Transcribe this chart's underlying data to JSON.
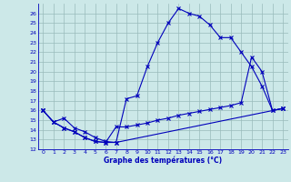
{
  "xlabel": "Graphe des températures (°C)",
  "xlim": [
    -0.5,
    23.5
  ],
  "ylim": [
    12,
    27
  ],
  "xticks": [
    0,
    1,
    2,
    3,
    4,
    5,
    6,
    7,
    8,
    9,
    10,
    11,
    12,
    13,
    14,
    15,
    16,
    17,
    18,
    19,
    20,
    21,
    22,
    23
  ],
  "yticks": [
    12,
    13,
    14,
    15,
    16,
    17,
    18,
    19,
    20,
    21,
    22,
    23,
    24,
    25,
    26
  ],
  "bg_color": "#cce8e8",
  "grid_color": "#99bbbb",
  "line_color": "#0000bb",
  "line1_x": [
    0,
    1,
    2,
    3,
    4,
    5,
    6,
    7,
    8,
    9,
    10,
    11,
    12,
    13,
    14,
    15,
    16,
    17,
    18,
    19,
    20,
    21,
    22,
    23
  ],
  "line1_y": [
    16,
    14.8,
    14.2,
    13.8,
    13.2,
    12.8,
    12.7,
    12.7,
    17.2,
    17.5,
    20.5,
    23.0,
    25.0,
    26.5,
    26.0,
    25.7,
    24.8,
    23.5,
    23.5,
    22.0,
    20.5,
    18.5,
    16.0,
    16.2
  ],
  "line2_x": [
    0,
    1,
    2,
    3,
    4,
    5,
    6,
    7,
    8,
    9,
    10,
    11,
    12,
    13,
    14,
    15,
    16,
    17,
    18,
    19,
    20,
    21,
    22,
    23
  ],
  "line2_y": [
    16,
    14.8,
    14.2,
    13.8,
    13.2,
    12.8,
    12.7,
    14.3,
    14.3,
    14.5,
    14.7,
    15.0,
    15.2,
    15.5,
    15.7,
    15.9,
    16.1,
    16.3,
    16.5,
    16.8,
    21.5,
    20.0,
    16.0,
    16.2
  ],
  "line3_x": [
    0,
    1,
    2,
    3,
    4,
    5,
    6,
    7,
    23
  ],
  "line3_y": [
    16,
    14.8,
    15.2,
    14.2,
    13.8,
    13.2,
    12.8,
    12.7,
    16.2
  ]
}
